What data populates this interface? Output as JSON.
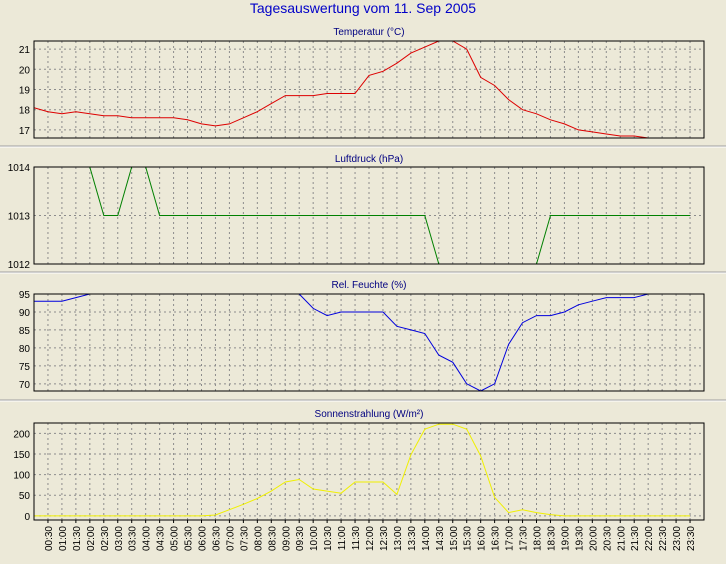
{
  "title": "Tagesauswertung vom 11. Sep 2005",
  "chart_data": [
    {
      "type": "line",
      "title": "Temperatur (°C)",
      "color": "#dd0000",
      "ylim": [
        16.6,
        21.4
      ],
      "yticks": [
        17,
        18,
        19,
        20,
        21
      ],
      "grid": true,
      "x": [
        "00:00",
        "00:30",
        "01:00",
        "01:30",
        "02:00",
        "02:30",
        "03:00",
        "03:30",
        "04:00",
        "04:30",
        "05:00",
        "05:30",
        "06:00",
        "06:30",
        "07:00",
        "07:30",
        "08:00",
        "08:30",
        "09:00",
        "09:30",
        "10:00",
        "10:30",
        "11:00",
        "11:30",
        "12:00",
        "12:30",
        "13:00",
        "13:30",
        "14:00",
        "14:30",
        "15:00",
        "15:30",
        "16:00",
        "16:30",
        "17:00",
        "17:30",
        "18:00",
        "18:30",
        "19:00",
        "19:30",
        "20:00",
        "20:30",
        "21:00",
        "21:30",
        "22:00",
        "22:30",
        "23:00",
        "23:30"
      ],
      "values": [
        18.1,
        17.9,
        17.8,
        17.9,
        17.8,
        17.7,
        17.7,
        17.6,
        17.6,
        17.6,
        17.6,
        17.5,
        17.3,
        17.2,
        17.3,
        17.6,
        17.9,
        18.3,
        18.7,
        18.7,
        18.7,
        18.8,
        18.8,
        18.8,
        19.7,
        19.9,
        20.3,
        20.8,
        21.1,
        21.4,
        21.4,
        21.0,
        19.6,
        19.2,
        18.5,
        18.0,
        17.8,
        17.5,
        17.3,
        17.0,
        16.9,
        16.8,
        16.7,
        16.7,
        16.6,
        16.6,
        16.6,
        16.6
      ]
    },
    {
      "type": "line",
      "title": "Luftdruck (hPa)",
      "color": "#008000",
      "ylim": [
        1012,
        1014
      ],
      "yticks": [
        1012,
        1013,
        1014
      ],
      "grid": true,
      "x": [
        "00:00",
        "00:30",
        "01:00",
        "01:30",
        "02:00",
        "02:30",
        "03:00",
        "03:30",
        "04:00",
        "04:30",
        "05:00",
        "05:30",
        "06:00",
        "06:30",
        "07:00",
        "07:30",
        "08:00",
        "08:30",
        "09:00",
        "09:30",
        "10:00",
        "10:30",
        "11:00",
        "11:30",
        "12:00",
        "12:30",
        "13:00",
        "13:30",
        "14:00",
        "14:30",
        "15:00",
        "15:30",
        "16:00",
        "16:30",
        "17:00",
        "17:30",
        "18:00",
        "18:30",
        "19:00",
        "19:30",
        "20:00",
        "20:30",
        "21:00",
        "21:30",
        "22:00",
        "22:30",
        "23:00",
        "23:30"
      ],
      "values": [
        1014,
        1014,
        1014,
        1014,
        1014,
        1013,
        1013,
        1014,
        1014,
        1013,
        1013,
        1013,
        1013,
        1013,
        1013,
        1013,
        1013,
        1013,
        1013,
        1013,
        1013,
        1013,
        1013,
        1013,
        1013,
        1013,
        1013,
        1013,
        1013,
        1012,
        1012,
        1012,
        1012,
        1012,
        1012,
        1012,
        1012,
        1013,
        1013,
        1013,
        1013,
        1013,
        1013,
        1013,
        1013,
        1013,
        1013,
        1013
      ]
    },
    {
      "type": "line",
      "title": "Rel. Feuchte (%)",
      "color": "#0000dd",
      "ylim": [
        68,
        95
      ],
      "yticks": [
        70,
        75,
        80,
        85,
        90,
        95
      ],
      "grid": true,
      "x": [
        "00:00",
        "00:30",
        "01:00",
        "01:30",
        "02:00",
        "02:30",
        "03:00",
        "03:30",
        "04:00",
        "04:30",
        "05:00",
        "05:30",
        "06:00",
        "06:30",
        "07:00",
        "07:30",
        "08:00",
        "08:30",
        "09:00",
        "09:30",
        "10:00",
        "10:30",
        "11:00",
        "11:30",
        "12:00",
        "12:30",
        "13:00",
        "13:30",
        "14:00",
        "14:30",
        "15:00",
        "15:30",
        "16:00",
        "16:30",
        "17:00",
        "17:30",
        "18:00",
        "18:30",
        "19:00",
        "19:30",
        "20:00",
        "20:30",
        "21:00",
        "21:30",
        "22:00",
        "22:30",
        "23:00",
        "23:30"
      ],
      "values": [
        93,
        93,
        93,
        94,
        95,
        96,
        97,
        97,
        97,
        97,
        97,
        97,
        97,
        97,
        97,
        97,
        97,
        97,
        97,
        95,
        91,
        89,
        90,
        90,
        90,
        90,
        86,
        85,
        84,
        78,
        76,
        70,
        68,
        70,
        81,
        87,
        89,
        89,
        90,
        92,
        93,
        94,
        94,
        94,
        95,
        96,
        96,
        96
      ]
    },
    {
      "type": "line",
      "title": "Sonnenstrahlung (W/m²)",
      "color": "#f0f000",
      "ylim": [
        -10,
        225
      ],
      "yticks": [
        0,
        50,
        100,
        150,
        200
      ],
      "grid": true,
      "x": [
        "00:00",
        "00:30",
        "01:00",
        "01:30",
        "02:00",
        "02:30",
        "03:00",
        "03:30",
        "04:00",
        "04:30",
        "05:00",
        "05:30",
        "06:00",
        "06:30",
        "07:00",
        "07:30",
        "08:00",
        "08:30",
        "09:00",
        "09:30",
        "10:00",
        "10:30",
        "11:00",
        "11:30",
        "12:00",
        "12:30",
        "13:00",
        "13:30",
        "14:00",
        "14:30",
        "15:00",
        "15:30",
        "16:00",
        "16:30",
        "17:00",
        "17:30",
        "18:00",
        "18:30",
        "19:00",
        "19:30",
        "20:00",
        "20:30",
        "21:00",
        "21:30",
        "22:00",
        "22:30",
        "23:00",
        "23:30"
      ],
      "values": [
        0,
        0,
        0,
        0,
        0,
        0,
        0,
        0,
        0,
        0,
        0,
        0,
        0,
        2,
        15,
        28,
        42,
        60,
        82,
        88,
        65,
        60,
        55,
        82,
        82,
        82,
        52,
        148,
        210,
        222,
        222,
        210,
        145,
        45,
        8,
        15,
        8,
        3,
        0,
        0,
        0,
        0,
        0,
        0,
        0,
        0,
        0,
        0
      ],
      "xticks": [
        "00:30",
        "01:00",
        "01:30",
        "02:00",
        "02:30",
        "03:00",
        "03:30",
        "04:00",
        "04:30",
        "05:00",
        "05:30",
        "06:00",
        "06:30",
        "07:00",
        "07:30",
        "08:00",
        "08:30",
        "09:00",
        "09:30",
        "10:00",
        "10:30",
        "11:00",
        "11:30",
        "12:00",
        "12:30",
        "13:00",
        "13:30",
        "14:00",
        "14:30",
        "15:00",
        "15:30",
        "16:00",
        "16:30",
        "17:00",
        "17:30",
        "18:00",
        "18:30",
        "19:00",
        "19:30",
        "20:00",
        "20:30",
        "21:00",
        "21:30",
        "22:00",
        "22:30",
        "23:00",
        "23:30"
      ]
    }
  ]
}
